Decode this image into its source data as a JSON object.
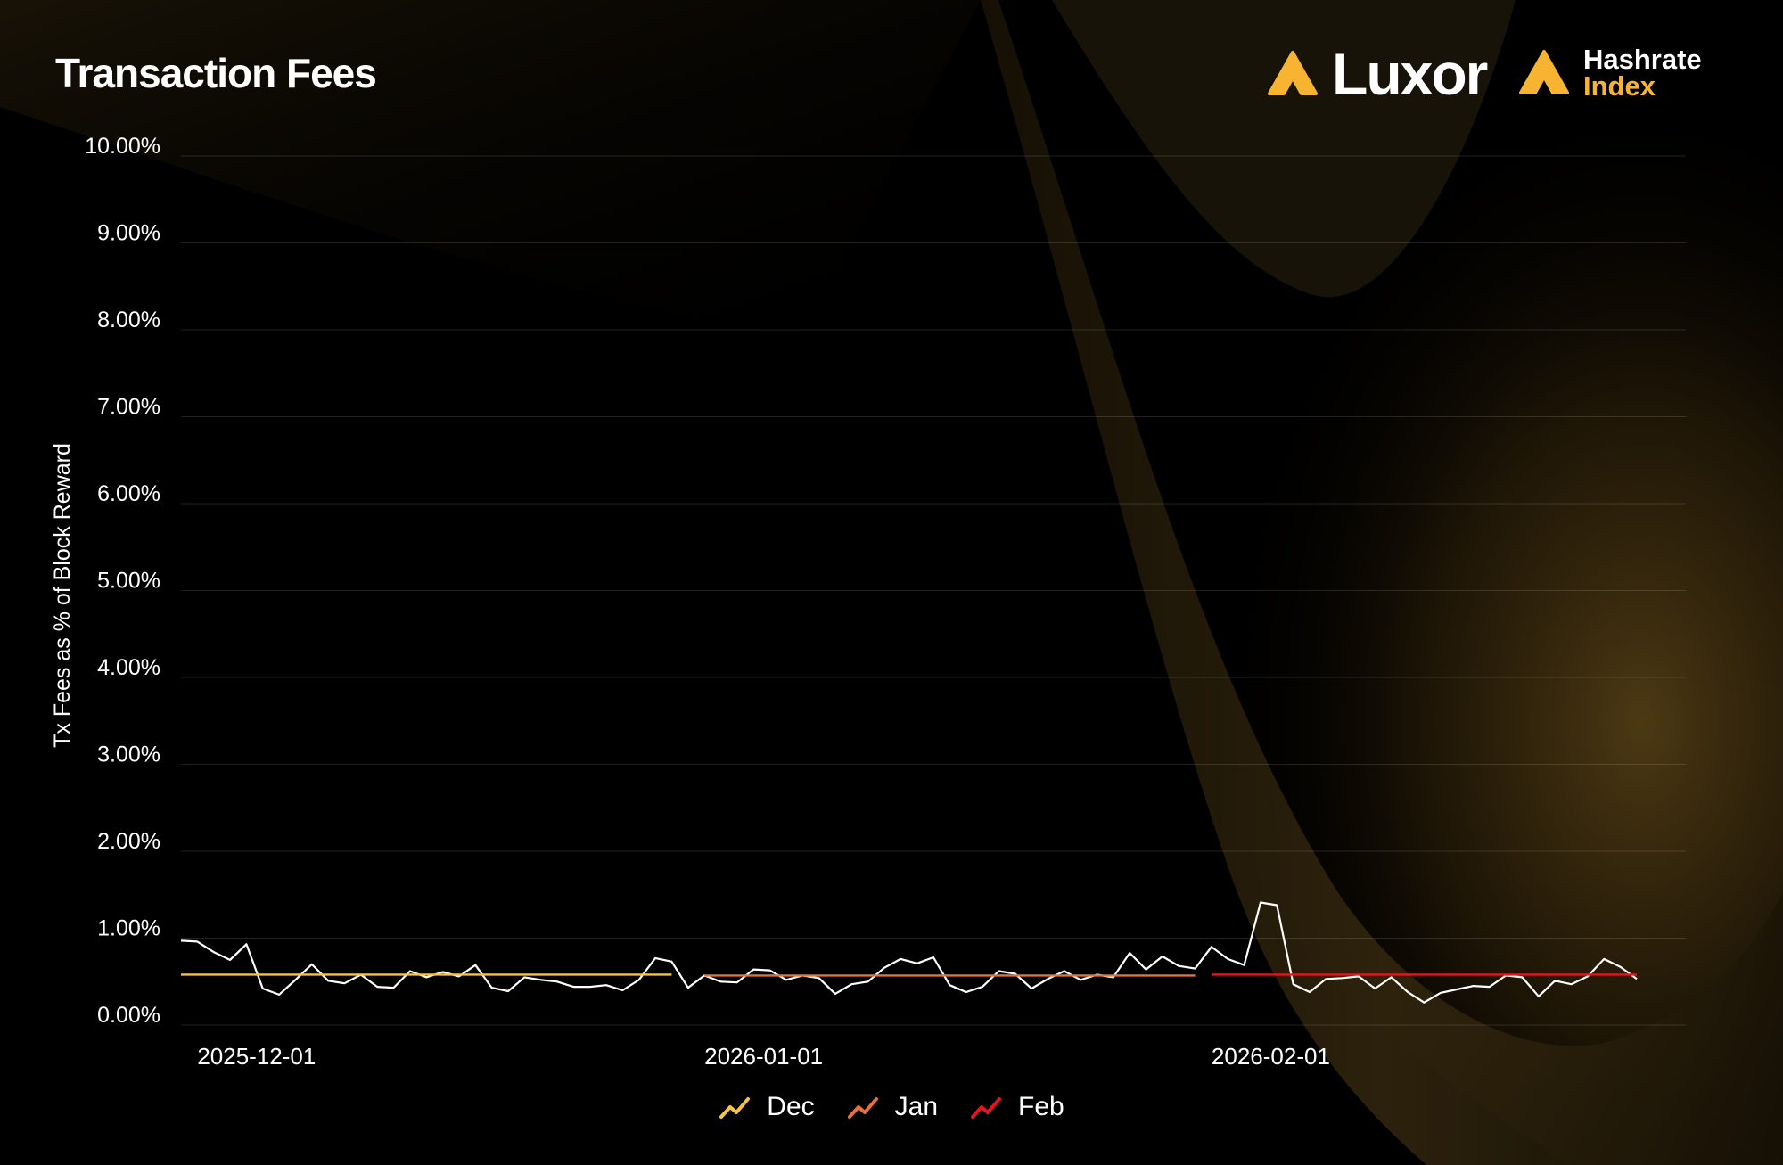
{
  "title": "Transaction Fees",
  "logos": {
    "luxor": "Luxor",
    "hashrate_line1": "Hashrate",
    "hashrate_line2": "Index",
    "accent_color": "#f7b431"
  },
  "chart_data": {
    "type": "line",
    "title": "Transaction Fees",
    "ylabel": "Tx Fees as % of Block Reward",
    "xlabel": "",
    "ylim": [
      0,
      10
    ],
    "y_ticks": [
      "0.00%",
      "1.00%",
      "2.00%",
      "3.00%",
      "4.00%",
      "5.00%",
      "6.00%",
      "7.00%",
      "8.00%",
      "9.00%",
      "10.00%"
    ],
    "x_ticks": [
      {
        "label": "2025-12-01",
        "date": "2025-12-01"
      },
      {
        "label": "2026-01-01",
        "date": "2026-01-01"
      },
      {
        "label": "2026-02-01",
        "date": "2026-02-01"
      }
    ],
    "x_range": [
      "2025-11-30",
      "2026-03-02"
    ],
    "grid": true,
    "legend_position": "bottom-center",
    "series": [
      {
        "color": "#ffffff",
        "points": [
          [
            "2025-11-30",
            0.97
          ],
          [
            "2025-12-01",
            0.96
          ],
          [
            "2025-12-02",
            0.84
          ],
          [
            "2025-12-03",
            0.75
          ],
          [
            "2025-12-04",
            0.93
          ],
          [
            "2025-12-05",
            0.42
          ],
          [
            "2025-12-06",
            0.35
          ],
          [
            "2025-12-07",
            0.52
          ],
          [
            "2025-12-08",
            0.7
          ],
          [
            "2025-12-09",
            0.51
          ],
          [
            "2025-12-10",
            0.48
          ],
          [
            "2025-12-11",
            0.58
          ],
          [
            "2025-12-12",
            0.44
          ],
          [
            "2025-12-13",
            0.43
          ],
          [
            "2025-12-14",
            0.62
          ],
          [
            "2025-12-15",
            0.55
          ],
          [
            "2025-12-16",
            0.61
          ],
          [
            "2025-12-17",
            0.56
          ],
          [
            "2025-12-18",
            0.69
          ],
          [
            "2025-12-19",
            0.43
          ],
          [
            "2025-12-20",
            0.39
          ],
          [
            "2025-12-21",
            0.55
          ],
          [
            "2025-12-22",
            0.52
          ],
          [
            "2025-12-23",
            0.5
          ],
          [
            "2025-12-24",
            0.44
          ],
          [
            "2025-12-25",
            0.44
          ],
          [
            "2025-12-26",
            0.46
          ],
          [
            "2025-12-27",
            0.4
          ],
          [
            "2025-12-28",
            0.52
          ],
          [
            "2025-12-29",
            0.77
          ],
          [
            "2025-12-30",
            0.73
          ],
          [
            "2025-12-31",
            0.43
          ],
          [
            "2026-01-01",
            0.57
          ],
          [
            "2026-01-02",
            0.5
          ],
          [
            "2026-01-03",
            0.49
          ],
          [
            "2026-01-04",
            0.64
          ],
          [
            "2026-01-05",
            0.63
          ],
          [
            "2026-01-06",
            0.52
          ],
          [
            "2026-01-07",
            0.57
          ],
          [
            "2026-01-08",
            0.54
          ],
          [
            "2026-01-09",
            0.36
          ],
          [
            "2026-01-10",
            0.47
          ],
          [
            "2026-01-11",
            0.5
          ],
          [
            "2026-01-12",
            0.66
          ],
          [
            "2026-01-13",
            0.76
          ],
          [
            "2026-01-14",
            0.71
          ],
          [
            "2026-01-15",
            0.78
          ],
          [
            "2026-01-16",
            0.46
          ],
          [
            "2026-01-17",
            0.38
          ],
          [
            "2026-01-18",
            0.44
          ],
          [
            "2026-01-19",
            0.62
          ],
          [
            "2026-01-20",
            0.59
          ],
          [
            "2026-01-21",
            0.42
          ],
          [
            "2026-01-22",
            0.53
          ],
          [
            "2026-01-23",
            0.62
          ],
          [
            "2026-01-24",
            0.52
          ],
          [
            "2026-01-25",
            0.58
          ],
          [
            "2026-01-26",
            0.55
          ],
          [
            "2026-01-27",
            0.83
          ],
          [
            "2026-01-28",
            0.64
          ],
          [
            "2026-01-29",
            0.79
          ],
          [
            "2026-01-30",
            0.68
          ],
          [
            "2026-01-31",
            0.65
          ],
          [
            "2026-02-01",
            0.9
          ],
          [
            "2026-02-02",
            0.76
          ],
          [
            "2026-02-03",
            0.69
          ],
          [
            "2026-02-04",
            1.41
          ],
          [
            "2026-02-05",
            1.38
          ],
          [
            "2026-02-06",
            0.47
          ],
          [
            "2026-02-07",
            0.38
          ],
          [
            "2026-02-08",
            0.53
          ],
          [
            "2026-02-09",
            0.54
          ],
          [
            "2026-02-10",
            0.56
          ],
          [
            "2026-02-11",
            0.42
          ],
          [
            "2026-02-12",
            0.55
          ],
          [
            "2026-02-13",
            0.38
          ],
          [
            "2026-02-14",
            0.26
          ],
          [
            "2026-02-15",
            0.37
          ],
          [
            "2026-02-16",
            0.41
          ],
          [
            "2026-02-17",
            0.45
          ],
          [
            "2026-02-18",
            0.44
          ],
          [
            "2026-02-19",
            0.57
          ],
          [
            "2026-02-20",
            0.55
          ],
          [
            "2026-02-21",
            0.33
          ],
          [
            "2026-02-22",
            0.51
          ],
          [
            "2026-02-23",
            0.47
          ],
          [
            "2026-02-24",
            0.56
          ],
          [
            "2026-02-25",
            0.76
          ],
          [
            "2026-02-26",
            0.67
          ],
          [
            "2026-02-27",
            0.53
          ]
        ]
      },
      {
        "name": "Dec",
        "color": "#f5c542",
        "x": [
          "2025-11-30",
          "2025-12-30"
        ],
        "y": [
          0.58,
          0.58
        ]
      },
      {
        "name": "Jan",
        "color": "#e8703a",
        "x": [
          "2026-01-01",
          "2026-01-31"
        ],
        "y": [
          0.57,
          0.57
        ]
      },
      {
        "name": "Feb",
        "color": "#e8151d",
        "x": [
          "2026-02-01",
          "2026-02-27"
        ],
        "y": [
          0.58,
          0.58
        ]
      }
    ]
  }
}
